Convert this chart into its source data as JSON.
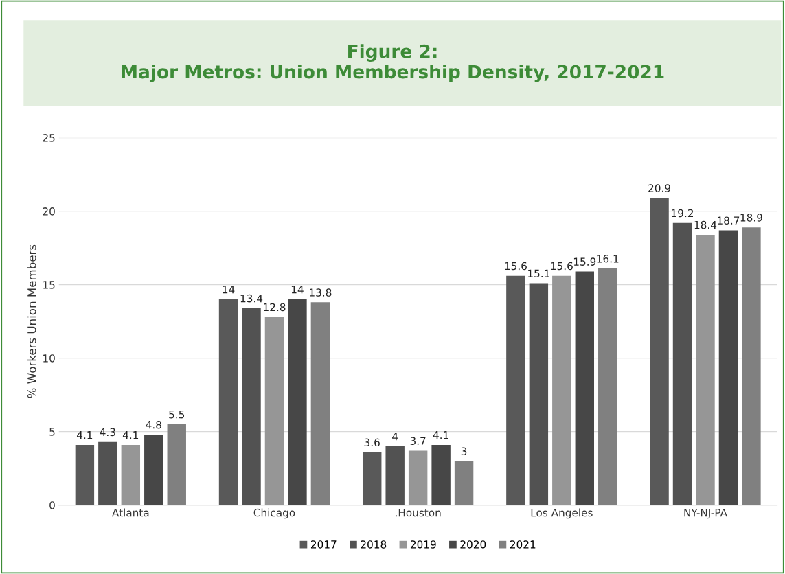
{
  "chart_data": {
    "type": "bar",
    "title": "Figure 2:\nMajor Metros: Union Membership Density, 2017-2021",
    "ylabel": "% Workers Union Members",
    "categories": [
      "Atlanta",
      "Chicago",
      ".Houston",
      "Los Angeles",
      "NY-NJ-PA"
    ],
    "series": [
      {
        "name": "2017",
        "color": "#595959",
        "values": [
          4.1,
          14,
          3.6,
          15.6,
          20.9
        ]
      },
      {
        "name": "2018",
        "color": "#525252",
        "values": [
          4.3,
          13.4,
          4,
          15.1,
          19.2
        ]
      },
      {
        "name": "2019",
        "color": "#969696",
        "values": [
          4.1,
          12.8,
          3.7,
          15.6,
          18.4
        ]
      },
      {
        "name": "2020",
        "color": "#474747",
        "values": [
          4.8,
          14,
          4.1,
          15.9,
          18.7
        ]
      },
      {
        "name": "2021",
        "color": "#808080",
        "values": [
          5.5,
          13.8,
          3,
          16.1,
          18.9
        ]
      }
    ],
    "ylim": [
      0,
      25
    ],
    "yticks": [
      0,
      5,
      10,
      15,
      20,
      25
    ],
    "grid": "y",
    "legend": "bottom",
    "data_labels": true
  }
}
